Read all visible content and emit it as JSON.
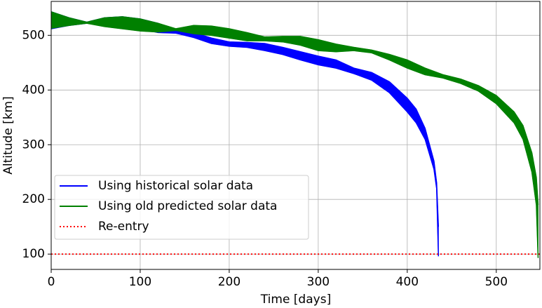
{
  "chart_data": {
    "type": "band",
    "xlabel": "Time [days]",
    "ylabel": "Altitude [km]",
    "xlim": [
      0,
      549
    ],
    "ylim": [
      72,
      562
    ],
    "xticks": [
      0,
      100,
      200,
      300,
      400,
      500
    ],
    "yticks": [
      100,
      200,
      300,
      400,
      500
    ],
    "grid": true,
    "legend": "lower left",
    "series": [
      {
        "name": "Using historical solar data",
        "color": "#0000ff",
        "x": [
          0,
          20,
          40,
          60,
          80,
          100,
          120,
          140,
          160,
          180,
          200,
          220,
          240,
          260,
          280,
          300,
          320,
          340,
          360,
          380,
          400,
          410,
          420,
          430,
          433,
          435
        ],
        "upper": [
          543,
          532,
          524,
          532,
          534,
          530,
          522,
          510,
          505,
          495,
          488,
          487,
          485,
          478,
          470,
          462,
          455,
          440,
          432,
          415,
          385,
          365,
          330,
          270,
          230,
          150
        ],
        "lower": [
          512,
          518,
          522,
          520,
          516,
          512,
          505,
          504,
          496,
          485,
          480,
          478,
          472,
          465,
          455,
          446,
          440,
          430,
          418,
          395,
          360,
          340,
          310,
          255,
          220,
          96
        ]
      },
      {
        "name": "Using old predicted solar data",
        "color": "#008000",
        "x": [
          0,
          20,
          40,
          60,
          80,
          100,
          120,
          140,
          160,
          180,
          200,
          220,
          240,
          260,
          280,
          300,
          320,
          340,
          360,
          380,
          400,
          420,
          440,
          460,
          480,
          500,
          520,
          530,
          540,
          545,
          547
        ],
        "upper": [
          543,
          532,
          524,
          532,
          534,
          530,
          522,
          512,
          518,
          517,
          512,
          505,
          497,
          498,
          498,
          492,
          484,
          478,
          473,
          465,
          455,
          440,
          428,
          420,
          408,
          390,
          360,
          335,
          285,
          240,
          190
        ],
        "lower": [
          513,
          518,
          522,
          516,
          512,
          508,
          506,
          509,
          503,
          500,
          495,
          490,
          490,
          488,
          482,
          472,
          470,
          472,
          468,
          455,
          440,
          428,
          422,
          412,
          398,
          375,
          340,
          310,
          250,
          190,
          93
        ]
      }
    ],
    "reference_line": {
      "name": "Re-entry",
      "value": 100,
      "color": "#ff0000"
    }
  }
}
